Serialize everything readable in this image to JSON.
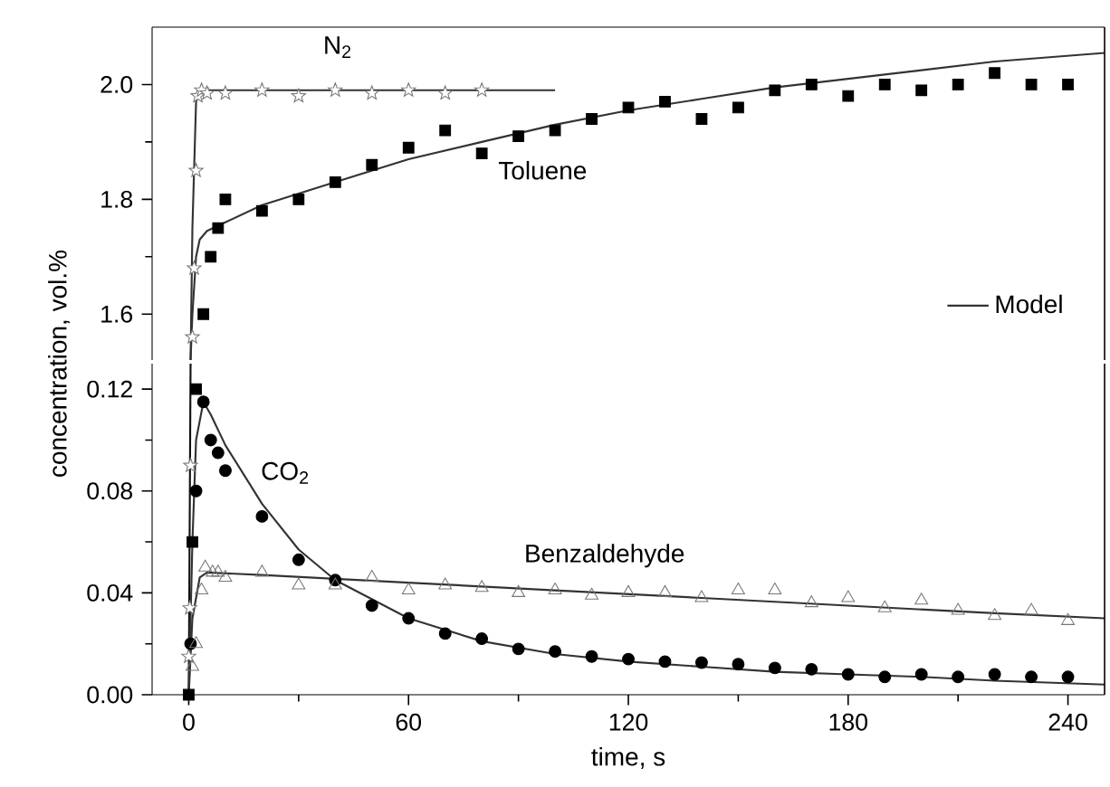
{
  "chart_data": [
    {
      "type": "scatter",
      "xlim": [
        -10,
        250
      ],
      "ylim": [
        1.52,
        2.1
      ],
      "tick_labels": "y",
      "legend": "bottom right",
      "yticks": [
        {
          "value": 1.6,
          "label": "1.6"
        },
        {
          "value": 1.8,
          "label": "1.8"
        },
        {
          "value": 2.0,
          "label": "2.0"
        }
      ],
      "annotations": [
        "N$_{2}$",
        "Toluene"
      ],
      "series": [
        {
          "marker": "star",
          "color": "#777777",
          "x": [
            1,
            1.5,
            2,
            2.5,
            3.5,
            5,
            10,
            20,
            30,
            40,
            50,
            60,
            70,
            80
          ],
          "values": [
            1.56,
            1.68,
            1.85,
            1.98,
            1.99,
            1.985,
            1.985,
            1.99,
            1.98,
            1.99,
            1.985,
            1.99,
            1.985,
            1.99
          ]
        },
        {
          "marker": "square",
          "color": "#000000",
          "x": [
            4,
            6,
            8,
            10,
            20,
            30,
            40,
            50,
            60,
            70,
            80,
            90,
            100,
            110,
            120,
            130,
            140,
            150,
            160,
            170,
            180,
            190,
            200,
            210,
            220,
            230,
            240
          ],
          "values": [
            1.6,
            1.7,
            1.75,
            1.8,
            1.78,
            1.8,
            1.83,
            1.86,
            1.89,
            1.92,
            1.88,
            1.91,
            1.92,
            1.94,
            1.96,
            1.97,
            1.94,
            1.96,
            1.99,
            2.0,
            1.98,
            2.0,
            1.99,
            2.0,
            2.02,
            2.0,
            2.0
          ]
        },
        {
          "type": "line",
          "name": "Model",
          "color": "#333333",
          "x": [
            0.5,
            1,
            2,
            3,
            5,
            10,
            20,
            40,
            60,
            80,
            100,
            120,
            140,
            160,
            180,
            200,
            220,
            250
          ],
          "values": [
            1.52,
            1.6,
            1.7,
            1.73,
            1.745,
            1.76,
            1.79,
            1.83,
            1.87,
            1.9,
            1.93,
            1.955,
            1.975,
            1.995,
            2.01,
            2.025,
            2.04,
            2.055
          ]
        },
        {
          "type": "line",
          "color": "#333333",
          "x": [
            0.5,
            1,
            2,
            3,
            100
          ],
          "values": [
            1.52,
            1.75,
            1.97,
            1.99,
            1.99
          ]
        }
      ]
    },
    {
      "type": "scatter",
      "xlim": [
        -10,
        250
      ],
      "ylim": [
        0,
        0.13
      ],
      "xlabel": "time, s",
      "ylabel": "concentration, vol.%",
      "xticks": [
        0,
        60,
        120,
        180,
        240
      ],
      "yticks": [
        {
          "value": 0,
          "label": "0.00"
        },
        {
          "value": 0.04,
          "label": "0.04"
        },
        {
          "value": 0.08,
          "label": "0.08"
        },
        {
          "value": 0.12,
          "label": "0.12"
        }
      ],
      "annotations": [
        "CO$_{2}$",
        "Benzaldehyde"
      ],
      "series": [
        {
          "type": "line",
          "color": "#111111",
          "x": [
            0,
            0.5
          ],
          "values": [
            0,
            0.13
          ]
        },
        {
          "type": "line",
          "color": "#333333",
          "x": [
            0,
            1,
            2,
            4,
            6,
            10,
            20,
            30,
            40,
            60,
            80,
            100,
            120,
            140,
            160,
            180,
            200,
            220,
            250
          ],
          "values": [
            0,
            0.06,
            0.1,
            0.115,
            0.11,
            0.098,
            0.075,
            0.057,
            0.045,
            0.03,
            0.021,
            0.016,
            0.013,
            0.011,
            0.009,
            0.008,
            0.007,
            0.0055,
            0.004
          ]
        },
        {
          "type": "line",
          "color": "#333333",
          "x": [
            0,
            1,
            3,
            5,
            20,
            60,
            100,
            140,
            180,
            220,
            250
          ],
          "values": [
            0,
            0.03,
            0.046,
            0.048,
            0.047,
            0.044,
            0.041,
            0.038,
            0.035,
            0.032,
            0.03
          ]
        },
        {
          "marker": "star",
          "color": "#777777",
          "x": [
            0,
            0.3,
            0.5
          ],
          "values": [
            0.015,
            0.034,
            0.09
          ]
        },
        {
          "marker": "square",
          "color": "#000000",
          "x": [
            0,
            1,
            2
          ],
          "values": [
            0,
            0.06,
            0.12
          ]
        },
        {
          "marker": "circle",
          "color": "#000000",
          "x": [
            0.5,
            2,
            4,
            6,
            8,
            10,
            20,
            30,
            40,
            50,
            60,
            70,
            80,
            90,
            100,
            110,
            120,
            130,
            140,
            150,
            160,
            170,
            180,
            190,
            200,
            210,
            220,
            230,
            240
          ],
          "values": [
            0.02,
            0.08,
            0.115,
            0.1,
            0.095,
            0.088,
            0.07,
            0.053,
            0.045,
            0.035,
            0.03,
            0.024,
            0.022,
            0.018,
            0.017,
            0.015,
            0.014,
            0.013,
            0.0126,
            0.012,
            0.0105,
            0.01,
            0.008,
            0.007,
            0.008,
            0.007,
            0.008,
            0.007,
            0.007
          ]
        },
        {
          "marker": "triangle",
          "color": "#777777",
          "x": [
            1,
            2,
            3.5,
            4.5,
            6.5,
            8,
            10,
            20,
            30,
            40,
            50,
            60,
            70,
            80,
            90,
            100,
            110,
            120,
            130,
            140,
            150,
            160,
            170,
            180,
            190,
            200,
            210,
            220,
            230,
            240
          ],
          "values": [
            0.011,
            0.02,
            0.041,
            0.05,
            0.048,
            0.048,
            0.046,
            0.048,
            0.043,
            0.043,
            0.046,
            0.041,
            0.043,
            0.042,
            0.04,
            0.041,
            0.039,
            0.04,
            0.04,
            0.038,
            0.041,
            0.041,
            0.036,
            0.038,
            0.034,
            0.037,
            0.033,
            0.031,
            0.033,
            0.029
          ]
        }
      ]
    }
  ]
}
